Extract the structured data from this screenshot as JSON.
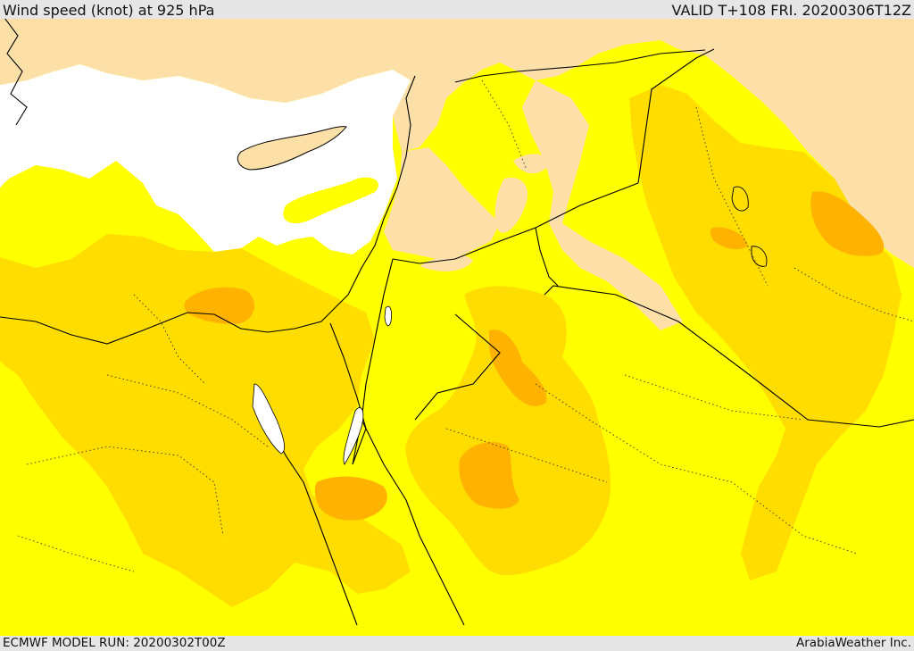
{
  "header": {
    "title": "Wind speed (knot) at 925 hPa",
    "valid_time": "VALID T+108 FRI. 20200306T12Z"
  },
  "footer": {
    "model_run": "ECMWF MODEL RUN: 20200302T00Z",
    "credit": "ArabiaWeather Inc."
  },
  "map": {
    "colors": {
      "sea_calm": "#ffffff",
      "land_calm": "#fddfa8",
      "band_low": "#ffff00",
      "band_mid": "#ffdd00",
      "band_high": "#ffb300",
      "borders": "#000000"
    }
  }
}
